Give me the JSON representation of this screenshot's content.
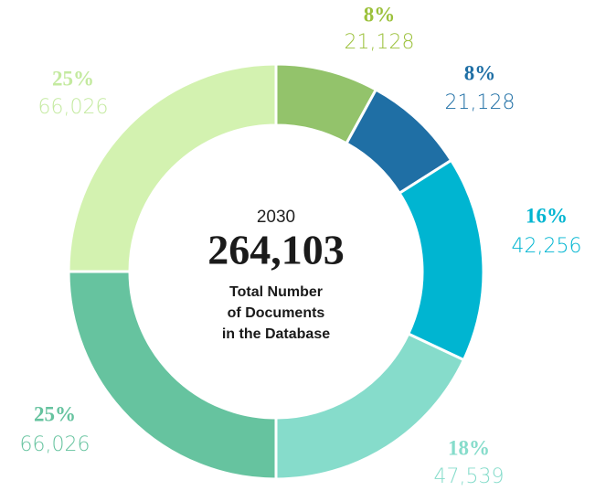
{
  "chart_data": {
    "type": "donut",
    "center_year": "2030",
    "total": "264,103",
    "center_label": [
      "Total Number",
      "of Documents",
      "in the Database"
    ],
    "categories": [
      null,
      null,
      null,
      null,
      null,
      null
    ],
    "values": [
      21128,
      21128,
      42256,
      47539,
      66026,
      66026
    ],
    "value_labels": [
      "21,128",
      "21,128",
      "42,256",
      "47,539",
      "66,026",
      "66,026"
    ],
    "percent_labels": [
      "8%",
      "8%",
      "16%",
      "18%",
      "25%",
      "25%"
    ],
    "colors": [
      "#93c36b",
      "#1f6fa5",
      "#00b5d1",
      "#86dccb",
      "#66c39f",
      "#d3f2b0"
    ],
    "label_colors": [
      "#9cc13c",
      "#1f6fa5",
      "#00b5d1",
      "#86dccb",
      "#66c39f",
      "#c4eaa0"
    ]
  }
}
